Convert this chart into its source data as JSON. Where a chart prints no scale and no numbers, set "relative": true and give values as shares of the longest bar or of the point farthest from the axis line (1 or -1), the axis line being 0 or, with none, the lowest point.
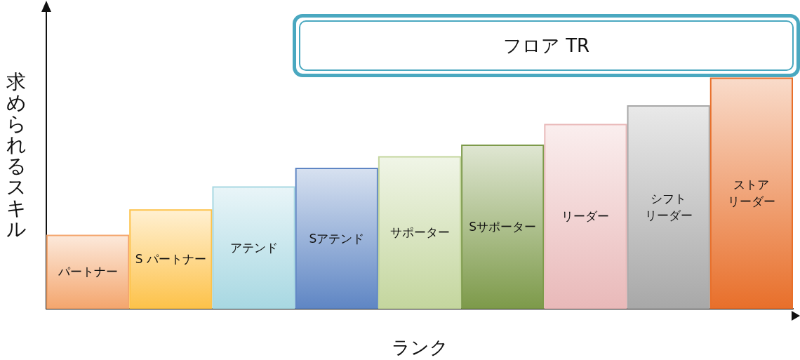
{
  "chart_data": {
    "type": "bar",
    "title": "フロア TR",
    "xlabel": "ランク",
    "ylabel": "求められるスキル",
    "relative": true,
    "categories": [
      "パートナー",
      "S パートナー",
      "アテンド",
      "Sアテンド",
      "サポーター",
      "Sサポーター",
      "リーダー",
      "シフトリーダー",
      "ストアリーダー"
    ],
    "values": [
      0.32,
      0.43,
      0.53,
      0.61,
      0.66,
      0.71,
      0.8,
      0.88,
      1
    ],
    "colors": [
      "#f4a66e",
      "#fdc24a",
      "#a8d8e2",
      "#5f86c4",
      "#c4d69e",
      "#7d9a4a",
      "#e9b9b9",
      "#a8a8a8",
      "#e86f2a"
    ],
    "grid": false
  }
}
